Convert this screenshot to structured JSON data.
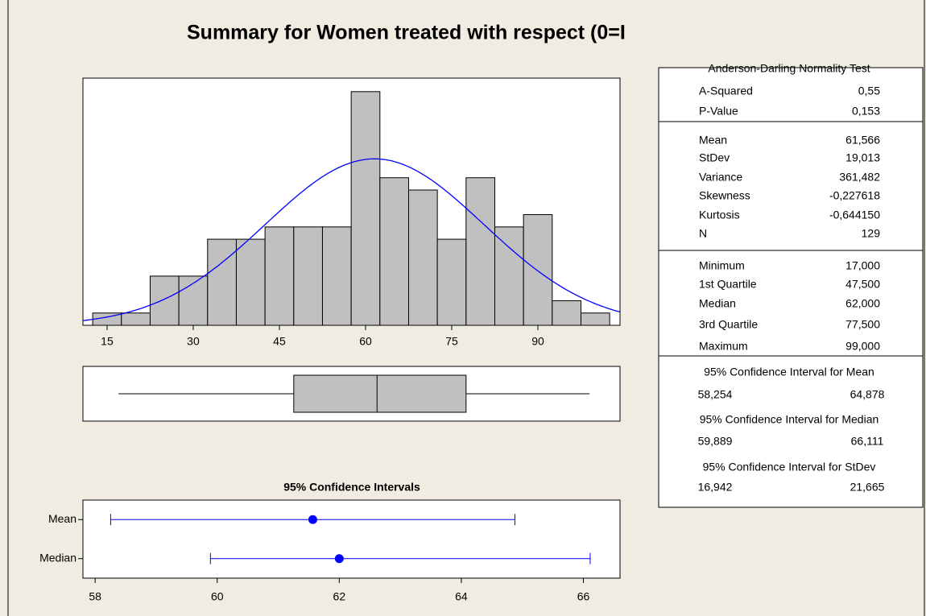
{
  "title": "Summary for Women treated with respect (0=I",
  "chart_data": [
    {
      "type": "histogram",
      "bins": [
        12.5,
        17.5,
        22.5,
        27.5,
        32.5,
        37.5,
        42.5,
        47.5,
        52.5,
        57.5,
        62.5,
        67.5,
        72.5,
        77.5,
        82.5,
        87.5,
        92.5,
        97.5,
        102.5
      ],
      "values": [
        1,
        1,
        4,
        4,
        7,
        7,
        8,
        8,
        8,
        19,
        12,
        11,
        7,
        12,
        8,
        9,
        2,
        1
      ],
      "color": "#c0c0c0",
      "xlim": [
        10.8,
        104.3
      ],
      "ylim": [
        0,
        20.1
      ],
      "xticks": [
        15,
        30,
        45,
        60,
        75,
        90
      ],
      "normal_fit": {
        "mean": 61.566,
        "stdev": 19.013,
        "color": "#0000ff"
      }
    },
    {
      "type": "boxplot",
      "min": 17,
      "q1": 47.5,
      "median": 62,
      "q3": 77.5,
      "max": 99,
      "color": "#c0c0c0",
      "xlim": [
        10.8,
        104.3
      ]
    },
    {
      "type": "interval",
      "title": "95% Confidence Intervals",
      "categories": [
        "Mean",
        "Median"
      ],
      "estimates": [
        61.566,
        62
      ],
      "lower": [
        58.254,
        59.889
      ],
      "upper": [
        64.878,
        66.111
      ],
      "color": "#0000ff",
      "xlim": [
        57.8,
        66.6
      ],
      "xticks": [
        58,
        60,
        62,
        64,
        66
      ]
    }
  ],
  "stats_table": {
    "sections": [
      {
        "title": "Anderson-Darling Normality Test",
        "rows": [
          [
            "A-Squared",
            "0,55"
          ],
          [
            "P-Value",
            "0,153"
          ]
        ]
      },
      {
        "rows": [
          [
            "Mean",
            "61,566"
          ],
          [
            "StDev",
            "19,013"
          ],
          [
            "Variance",
            "361,482"
          ],
          [
            "Skewness",
            "-0,227618"
          ],
          [
            "Kurtosis",
            "-0,644150"
          ],
          [
            "N",
            "129"
          ]
        ]
      },
      {
        "rows": [
          [
            "Minimum",
            "17,000"
          ],
          [
            "1st Quartile",
            "47,500"
          ],
          [
            "Median",
            "62,000"
          ],
          [
            "3rd Quartile",
            "77,500"
          ],
          [
            "Maximum",
            "99,000"
          ]
        ]
      },
      {
        "title": "95% Confidence Interval for Mean",
        "rows": [
          [
            "58,254",
            "64,878"
          ]
        ]
      },
      {
        "title": "95% Confidence Interval for Median",
        "rows": [
          [
            "59,889",
            "66,111"
          ]
        ]
      },
      {
        "title": "95% Confidence Interval for StDev",
        "rows": [
          [
            "16,942",
            "21,665"
          ]
        ]
      }
    ]
  }
}
